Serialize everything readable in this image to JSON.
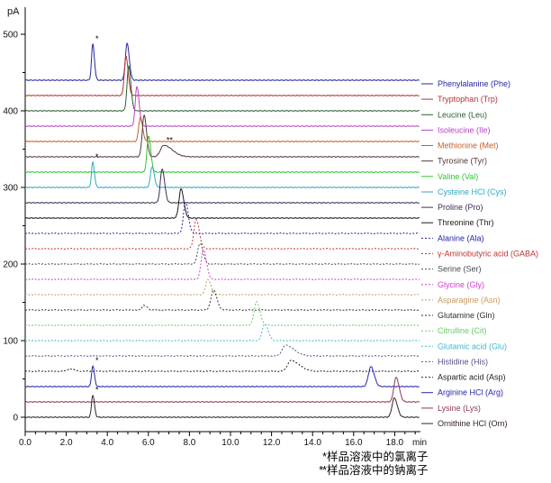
{
  "chart_data": {
    "type": "line",
    "chart_kind": "stacked-chromatogram-overlay",
    "title": "",
    "grid": false,
    "legend_position": "right",
    "y_axis": {
      "label": "pA",
      "min": 0,
      "max": 500,
      "major_tick_step": 100,
      "minor_tick_step": 50,
      "tick_labels": [
        "0",
        "100",
        "200",
        "300",
        "400",
        "500"
      ]
    },
    "x_axis": {
      "label": "min",
      "min": 0,
      "max": 19,
      "major_tick_step": 2,
      "minor_tick_step": 0.5,
      "tick_labels": [
        "0.0",
        "2.0",
        "4.0",
        "6.0",
        "8.0",
        "10.0",
        "12.0",
        "14.0",
        "16.0",
        "18.0"
      ]
    },
    "traces": [
      {
        "name": "Phenylalanine (Phe)",
        "color": "#2626A6",
        "line_style": "solid",
        "baseline_pA": 440,
        "peaks": [
          {
            "t_min": 3.29,
            "height_pA": 47,
            "sigma_min": 0.06,
            "marker": "*"
          },
          {
            "t_min": 4.96,
            "height_pA": 48,
            "sigma_min": 0.08
          }
        ]
      },
      {
        "name": "Tryptophan (Trp)",
        "color": "#B53131",
        "line_style": "solid",
        "baseline_pA": 420,
        "peaks": [
          {
            "t_min": 4.91,
            "height_pA": 51,
            "sigma_min": 0.08
          }
        ]
      },
      {
        "name": "Leucine (Leu)",
        "color": "#2F5F2F",
        "line_style": "solid",
        "baseline_pA": 400,
        "peaks": [
          {
            "t_min": 5.04,
            "height_pA": 58,
            "sigma_min": 0.08
          }
        ]
      },
      {
        "name": "Isoleucine (Ile)",
        "color": "#B944C4",
        "line_style": "solid",
        "baseline_pA": 380,
        "peaks": [
          {
            "t_min": 5.44,
            "height_pA": 52,
            "sigma_min": 0.08
          }
        ]
      },
      {
        "name": "Methionine (Met)",
        "color": "#C2602B",
        "line_style": "solid",
        "baseline_pA": 360,
        "peaks": [
          {
            "t_min": 5.61,
            "height_pA": 32,
            "sigma_min": 0.08
          }
        ]
      },
      {
        "name": "Tyrosine (Tyr)",
        "color": "#553838",
        "line_style": "solid",
        "baseline_pA": 340,
        "peaks": [
          {
            "t_min": 5.79,
            "height_pA": 54,
            "sigma_min": 0.09
          },
          {
            "t_min": 6.75,
            "height_pA": 15,
            "sigma_min": 0.16,
            "tail": true,
            "marker": "**"
          }
        ]
      },
      {
        "name": "Valine (Val)",
        "color": "#2FC52F",
        "line_style": "solid",
        "baseline_pA": 320,
        "peaks": [
          {
            "t_min": 6.01,
            "height_pA": 47,
            "sigma_min": 0.08
          }
        ]
      },
      {
        "name": "Cysteine HCl (Cys)",
        "color": "#2FA8C2",
        "line_style": "solid",
        "baseline_pA": 300,
        "peaks": [
          {
            "t_min": 3.29,
            "height_pA": 33,
            "sigma_min": 0.06,
            "marker": "*"
          },
          {
            "t_min": 6.18,
            "height_pA": 27,
            "sigma_min": 0.08
          }
        ]
      },
      {
        "name": "Proline (Pro)",
        "color": "#3D2B55",
        "line_style": "solid",
        "baseline_pA": 280,
        "peaks": [
          {
            "t_min": 6.67,
            "height_pA": 44,
            "sigma_min": 0.09
          }
        ]
      },
      {
        "name": "Threonine (Thr)",
        "color": "#1A1A1A",
        "line_style": "solid",
        "baseline_pA": 260,
        "peaks": [
          {
            "t_min": 7.59,
            "height_pA": 38,
            "sigma_min": 0.1
          }
        ]
      },
      {
        "name": "Alanine (Ala)",
        "color": "#2626A6",
        "line_style": "dashed",
        "baseline_pA": 240,
        "peaks": [
          {
            "t_min": 7.81,
            "height_pA": 41,
            "sigma_min": 0.1
          }
        ]
      },
      {
        "name": "γ-Aminobutyric acid (GABA)",
        "color": "#C23333",
        "line_style": "dashed",
        "baseline_pA": 220,
        "peaks": [
          {
            "t_min": 8.33,
            "height_pA": 38,
            "sigma_min": 0.11
          }
        ]
      },
      {
        "name": "Serine (Ser)",
        "color": "#4A4A4A",
        "line_style": "dashed",
        "baseline_pA": 200,
        "peaks": [
          {
            "t_min": 8.51,
            "height_pA": 27,
            "sigma_min": 0.11
          }
        ]
      },
      {
        "name": "Glycine (Gly)",
        "color": "#CC3FCC",
        "line_style": "dashed",
        "baseline_pA": 180,
        "peaks": [
          {
            "t_min": 8.68,
            "height_pA": 39,
            "sigma_min": 0.11
          }
        ]
      },
      {
        "name": "Asparagine (Asn)",
        "color": "#C79B62",
        "line_style": "dashed",
        "baseline_pA": 160,
        "peaks": [
          {
            "t_min": 8.9,
            "height_pA": 20,
            "sigma_min": 0.11
          }
        ]
      },
      {
        "name": "Glutamine (Gln)",
        "color": "#333333",
        "line_style": "dashed",
        "baseline_pA": 140,
        "peaks": [
          {
            "t_min": 5.8,
            "height_pA": 6,
            "sigma_min": 0.1
          },
          {
            "t_min": 9.17,
            "height_pA": 26,
            "sigma_min": 0.12
          }
        ]
      },
      {
        "name": "Citrulline (Cit)",
        "color": "#66CC66",
        "line_style": "dashed",
        "baseline_pA": 120,
        "peaks": [
          {
            "t_min": 11.27,
            "height_pA": 31,
            "sigma_min": 0.12
          }
        ]
      },
      {
        "name": "Glutamic acid (Glu)",
        "color": "#3FB8CC",
        "line_style": "dashed",
        "baseline_pA": 100,
        "peaks": [
          {
            "t_min": 11.67,
            "height_pA": 22,
            "sigma_min": 0.12
          }
        ]
      },
      {
        "name": "Histidine (His)",
        "color": "#5C4E86",
        "line_style": "dashed",
        "baseline_pA": 80,
        "peaks": [
          {
            "t_min": 12.68,
            "height_pA": 14,
            "sigma_min": 0.16,
            "tail": true
          }
        ]
      },
      {
        "name": "Aspartic acid (Asp)",
        "color": "#222222",
        "line_style": "dashed",
        "baseline_pA": 60,
        "peaks": [
          {
            "t_min": 2.2,
            "height_pA": 3,
            "sigma_min": 0.15
          },
          {
            "t_min": 12.94,
            "height_pA": 14,
            "sigma_min": 0.16,
            "tail": true
          }
        ]
      },
      {
        "name": "Arginine HCl (Arg)",
        "color": "#2626A6",
        "line_style": "solid",
        "baseline_pA": 40,
        "peaks": [
          {
            "t_min": 3.29,
            "height_pA": 27,
            "sigma_min": 0.06,
            "marker": "*"
          },
          {
            "t_min": 16.84,
            "height_pA": 26,
            "sigma_min": 0.12
          }
        ]
      },
      {
        "name": "Lysine (Lys)",
        "color": "#8B3A55",
        "line_style": "solid",
        "baseline_pA": 20,
        "peaks": [
          {
            "t_min": 18.07,
            "height_pA": 32,
            "sigma_min": 0.11
          }
        ]
      },
      {
        "name": "Ornithine HCl (Orn)",
        "color": "#332424",
        "line_style": "solid",
        "baseline_pA": 0,
        "peaks": [
          {
            "t_min": 3.29,
            "height_pA": 29,
            "sigma_min": 0.06,
            "marker": "*"
          },
          {
            "t_min": 17.98,
            "height_pA": 25,
            "sigma_min": 0.11
          }
        ]
      }
    ],
    "footnotes": [
      {
        "mark": "*",
        "text": "样品溶液中的氯离子"
      },
      {
        "mark": "**",
        "text": "样品溶液中的钠离子"
      }
    ]
  }
}
